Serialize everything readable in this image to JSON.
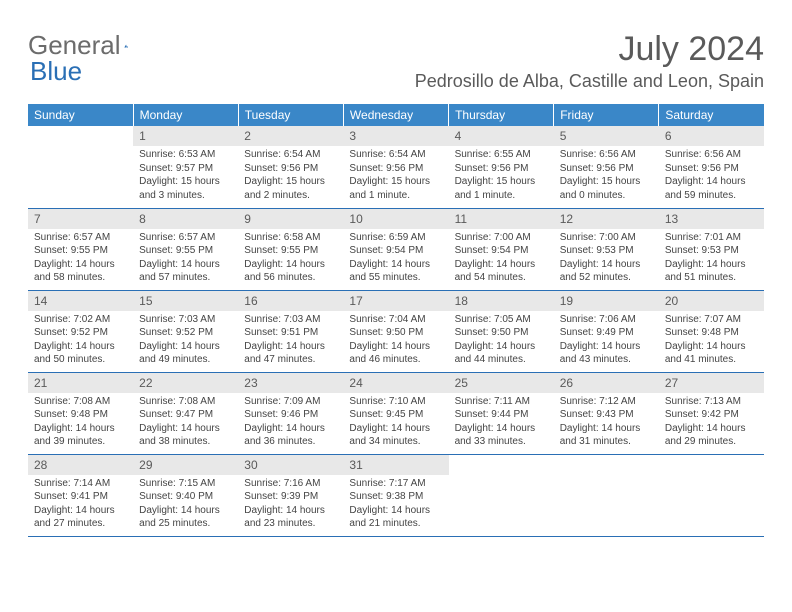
{
  "brand": {
    "word1": "General",
    "word2": "Blue"
  },
  "title": "July 2024",
  "location": "Pedrosillo de Alba, Castille and Leon, Spain",
  "dayHeaders": [
    "Sunday",
    "Monday",
    "Tuesday",
    "Wednesday",
    "Thursday",
    "Friday",
    "Saturday"
  ],
  "colors": {
    "headerBg": "#3a87c8",
    "headerText": "#ffffff",
    "dayNumBg": "#e8e8e8",
    "textGray": "#5a5a5a",
    "ruleBlue": "#2a6fb5"
  },
  "weeks": [
    [
      {
        "n": "",
        "sr": "",
        "ss": "",
        "dl": ""
      },
      {
        "n": "1",
        "sr": "Sunrise: 6:53 AM",
        "ss": "Sunset: 9:57 PM",
        "dl": "Daylight: 15 hours and 3 minutes."
      },
      {
        "n": "2",
        "sr": "Sunrise: 6:54 AM",
        "ss": "Sunset: 9:56 PM",
        "dl": "Daylight: 15 hours and 2 minutes."
      },
      {
        "n": "3",
        "sr": "Sunrise: 6:54 AM",
        "ss": "Sunset: 9:56 PM",
        "dl": "Daylight: 15 hours and 1 minute."
      },
      {
        "n": "4",
        "sr": "Sunrise: 6:55 AM",
        "ss": "Sunset: 9:56 PM",
        "dl": "Daylight: 15 hours and 1 minute."
      },
      {
        "n": "5",
        "sr": "Sunrise: 6:56 AM",
        "ss": "Sunset: 9:56 PM",
        "dl": "Daylight: 15 hours and 0 minutes."
      },
      {
        "n": "6",
        "sr": "Sunrise: 6:56 AM",
        "ss": "Sunset: 9:56 PM",
        "dl": "Daylight: 14 hours and 59 minutes."
      }
    ],
    [
      {
        "n": "7",
        "sr": "Sunrise: 6:57 AM",
        "ss": "Sunset: 9:55 PM",
        "dl": "Daylight: 14 hours and 58 minutes."
      },
      {
        "n": "8",
        "sr": "Sunrise: 6:57 AM",
        "ss": "Sunset: 9:55 PM",
        "dl": "Daylight: 14 hours and 57 minutes."
      },
      {
        "n": "9",
        "sr": "Sunrise: 6:58 AM",
        "ss": "Sunset: 9:55 PM",
        "dl": "Daylight: 14 hours and 56 minutes."
      },
      {
        "n": "10",
        "sr": "Sunrise: 6:59 AM",
        "ss": "Sunset: 9:54 PM",
        "dl": "Daylight: 14 hours and 55 minutes."
      },
      {
        "n": "11",
        "sr": "Sunrise: 7:00 AM",
        "ss": "Sunset: 9:54 PM",
        "dl": "Daylight: 14 hours and 54 minutes."
      },
      {
        "n": "12",
        "sr": "Sunrise: 7:00 AM",
        "ss": "Sunset: 9:53 PM",
        "dl": "Daylight: 14 hours and 52 minutes."
      },
      {
        "n": "13",
        "sr": "Sunrise: 7:01 AM",
        "ss": "Sunset: 9:53 PM",
        "dl": "Daylight: 14 hours and 51 minutes."
      }
    ],
    [
      {
        "n": "14",
        "sr": "Sunrise: 7:02 AM",
        "ss": "Sunset: 9:52 PM",
        "dl": "Daylight: 14 hours and 50 minutes."
      },
      {
        "n": "15",
        "sr": "Sunrise: 7:03 AM",
        "ss": "Sunset: 9:52 PM",
        "dl": "Daylight: 14 hours and 49 minutes."
      },
      {
        "n": "16",
        "sr": "Sunrise: 7:03 AM",
        "ss": "Sunset: 9:51 PM",
        "dl": "Daylight: 14 hours and 47 minutes."
      },
      {
        "n": "17",
        "sr": "Sunrise: 7:04 AM",
        "ss": "Sunset: 9:50 PM",
        "dl": "Daylight: 14 hours and 46 minutes."
      },
      {
        "n": "18",
        "sr": "Sunrise: 7:05 AM",
        "ss": "Sunset: 9:50 PM",
        "dl": "Daylight: 14 hours and 44 minutes."
      },
      {
        "n": "19",
        "sr": "Sunrise: 7:06 AM",
        "ss": "Sunset: 9:49 PM",
        "dl": "Daylight: 14 hours and 43 minutes."
      },
      {
        "n": "20",
        "sr": "Sunrise: 7:07 AM",
        "ss": "Sunset: 9:48 PM",
        "dl": "Daylight: 14 hours and 41 minutes."
      }
    ],
    [
      {
        "n": "21",
        "sr": "Sunrise: 7:08 AM",
        "ss": "Sunset: 9:48 PM",
        "dl": "Daylight: 14 hours and 39 minutes."
      },
      {
        "n": "22",
        "sr": "Sunrise: 7:08 AM",
        "ss": "Sunset: 9:47 PM",
        "dl": "Daylight: 14 hours and 38 minutes."
      },
      {
        "n": "23",
        "sr": "Sunrise: 7:09 AM",
        "ss": "Sunset: 9:46 PM",
        "dl": "Daylight: 14 hours and 36 minutes."
      },
      {
        "n": "24",
        "sr": "Sunrise: 7:10 AM",
        "ss": "Sunset: 9:45 PM",
        "dl": "Daylight: 14 hours and 34 minutes."
      },
      {
        "n": "25",
        "sr": "Sunrise: 7:11 AM",
        "ss": "Sunset: 9:44 PM",
        "dl": "Daylight: 14 hours and 33 minutes."
      },
      {
        "n": "26",
        "sr": "Sunrise: 7:12 AM",
        "ss": "Sunset: 9:43 PM",
        "dl": "Daylight: 14 hours and 31 minutes."
      },
      {
        "n": "27",
        "sr": "Sunrise: 7:13 AM",
        "ss": "Sunset: 9:42 PM",
        "dl": "Daylight: 14 hours and 29 minutes."
      }
    ],
    [
      {
        "n": "28",
        "sr": "Sunrise: 7:14 AM",
        "ss": "Sunset: 9:41 PM",
        "dl": "Daylight: 14 hours and 27 minutes."
      },
      {
        "n": "29",
        "sr": "Sunrise: 7:15 AM",
        "ss": "Sunset: 9:40 PM",
        "dl": "Daylight: 14 hours and 25 minutes."
      },
      {
        "n": "30",
        "sr": "Sunrise: 7:16 AM",
        "ss": "Sunset: 9:39 PM",
        "dl": "Daylight: 14 hours and 23 minutes."
      },
      {
        "n": "31",
        "sr": "Sunrise: 7:17 AM",
        "ss": "Sunset: 9:38 PM",
        "dl": "Daylight: 14 hours and 21 minutes."
      },
      {
        "n": "",
        "sr": "",
        "ss": "",
        "dl": ""
      },
      {
        "n": "",
        "sr": "",
        "ss": "",
        "dl": ""
      },
      {
        "n": "",
        "sr": "",
        "ss": "",
        "dl": ""
      }
    ]
  ]
}
